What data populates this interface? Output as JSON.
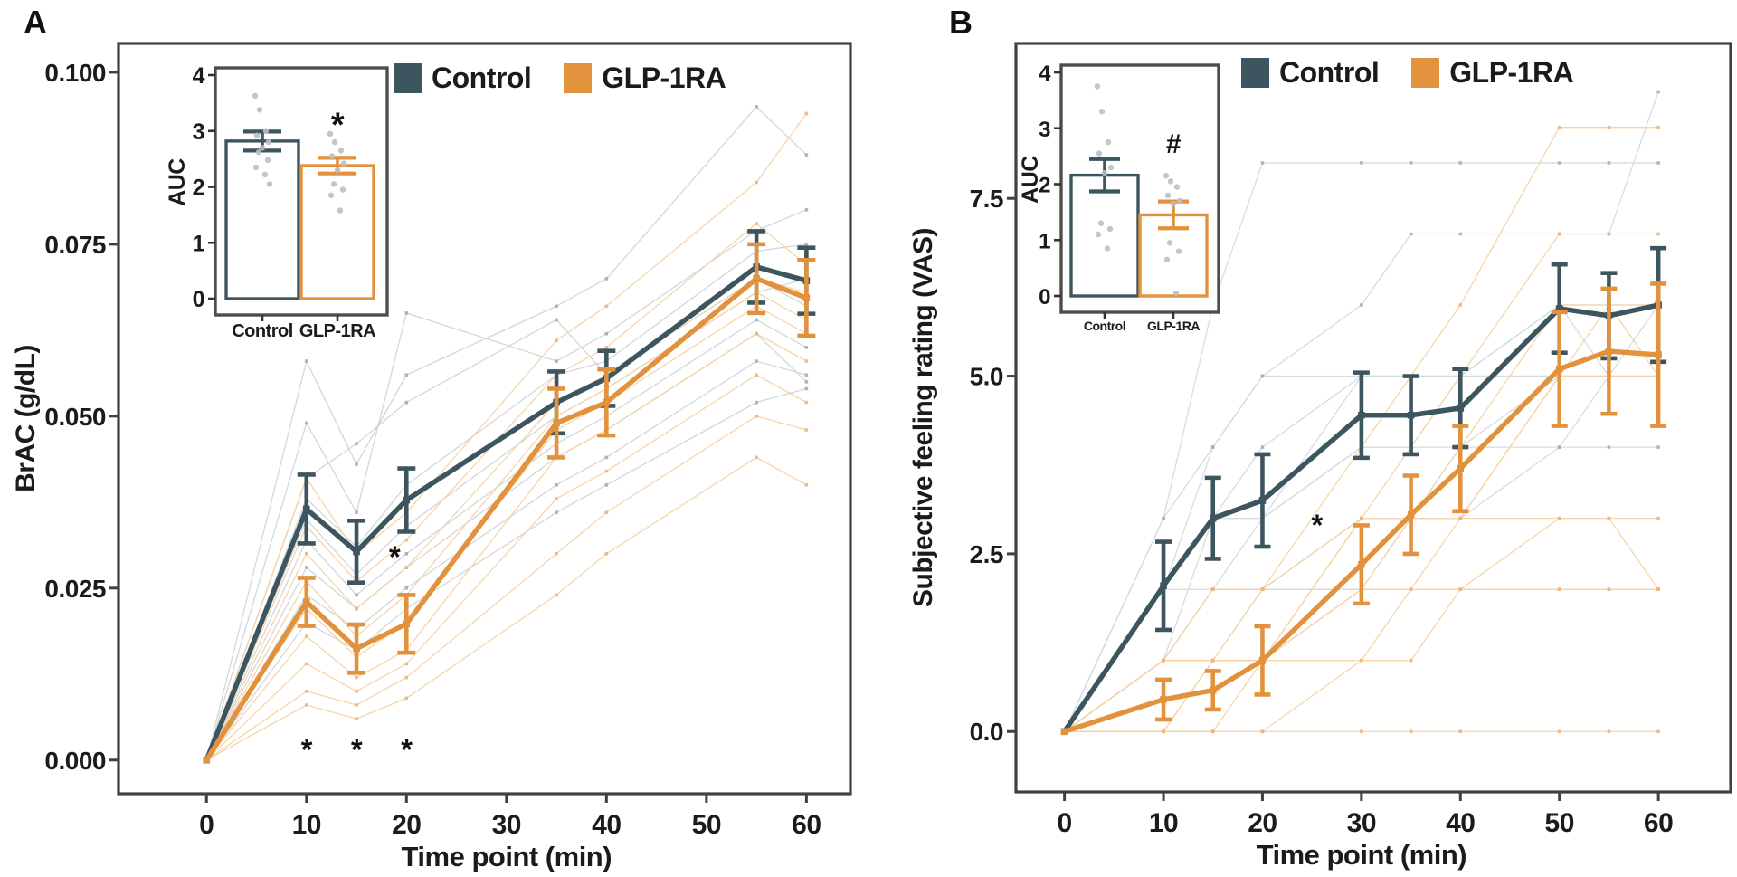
{
  "figure": {
    "panels": [
      {
        "label": "A"
      },
      {
        "label": "B"
      }
    ],
    "legend": {
      "entries": [
        {
          "label": "Control",
          "color": "#3d555e"
        },
        {
          "label": "GLP-1RA",
          "color": "#e2923d"
        }
      ]
    },
    "colors": {
      "control": "#3d555e",
      "glp1ra": "#e2923d",
      "control_individual": "#ccd3d6",
      "control_individual_marker": "#9fa9ae",
      "glp1ra_individual": "#f6d0a2",
      "glp1ra_individual_marker": "#edb277",
      "axis": "#3f4040",
      "jitter_point": "#b9c0c4",
      "annotation": "#111111"
    }
  },
  "chart_data": [
    {
      "id": "panel-a",
      "type": "line",
      "panel_label": "A",
      "xlabel": "Time point (min)",
      "ylabel": "BrAC (g/dL)",
      "xticks": [
        0,
        10,
        20,
        30,
        40,
        50,
        60
      ],
      "yticks": [
        0,
        0.025,
        0.05,
        0.075,
        0.1
      ],
      "ytick_labels": [
        "0.000",
        "0.025",
        "0.050",
        "0.075",
        "0.100"
      ],
      "xlim": [
        -8.8,
        64.4
      ],
      "ylim": [
        -0.0049,
        0.1042
      ],
      "x": [
        0,
        10,
        15,
        20,
        35,
        40,
        55,
        60
      ],
      "series": [
        {
          "name": "Control",
          "color": "#3d555e",
          "mean": [
            0,
            0.0365,
            0.0303,
            0.0378,
            0.052,
            0.0555,
            0.0717,
            0.0697
          ],
          "se": [
            0,
            0.005,
            0.0045,
            0.0046,
            0.0045,
            0.004,
            0.0052,
            0.0048
          ]
        },
        {
          "name": "GLP-1RA",
          "color": "#e2923d",
          "mean": [
            0,
            0.023,
            0.0162,
            0.0198,
            0.049,
            0.052,
            0.07,
            0.0672
          ],
          "se": [
            0,
            0.0035,
            0.0035,
            0.0042,
            0.005,
            0.0048,
            0.005,
            0.0055
          ]
        }
      ],
      "individuals": [
        {
          "group": "Control",
          "color": "#ccd3d6",
          "marker_color": "#9fa9ae",
          "lines": [
            [
              0,
              0.058,
              0.043,
              0.056,
              0.066,
              0.07,
              0.095,
              0.088
            ],
            [
              0,
              0.049,
              0.036,
              0.065,
              0.058,
              0.062,
              0.077,
              0.08
            ],
            [
              0,
              0.041,
              0.046,
              0.052,
              0.064,
              0.056,
              0.07,
              0.066
            ],
            [
              0,
              0.038,
              0.031,
              0.04,
              0.056,
              0.058,
              0.074,
              0.075
            ],
            [
              0,
              0.035,
              0.027,
              0.034,
              0.05,
              0.054,
              0.068,
              0.07
            ],
            [
              0,
              0.032,
              0.024,
              0.03,
              0.046,
              0.05,
              0.064,
              0.06
            ],
            [
              0,
              0.028,
              0.022,
              0.028,
              0.044,
              0.048,
              0.062,
              0.055
            ],
            [
              0,
              0.024,
              0.019,
              0.025,
              0.04,
              0.044,
              0.058,
              0.056
            ],
            [
              0,
              0.02,
              0.016,
              0.022,
              0.036,
              0.04,
              0.052,
              0.054
            ]
          ]
        },
        {
          "group": "GLP-1RA",
          "color": "#f6d0a2",
          "marker_color": "#edb277",
          "lines": [
            [
              0,
              0.041,
              0.03,
              0.036,
              0.061,
              0.066,
              0.084,
              0.094
            ],
            [
              0,
              0.034,
              0.026,
              0.032,
              0.056,
              0.06,
              0.078,
              0.072
            ],
            [
              0,
              0.03,
              0.022,
              0.028,
              0.052,
              0.056,
              0.07,
              0.068
            ],
            [
              0,
              0.026,
              0.018,
              0.024,
              0.05,
              0.054,
              0.068,
              0.064
            ],
            [
              0,
              0.022,
              0.015,
              0.02,
              0.048,
              0.052,
              0.066,
              0.062
            ],
            [
              0,
              0.018,
              0.012,
              0.016,
              0.044,
              0.048,
              0.062,
              0.058
            ],
            [
              0,
              0.014,
              0.01,
              0.014,
              0.038,
              0.042,
              0.056,
              0.052
            ],
            [
              0,
              0.01,
              0.008,
              0.012,
              0.03,
              0.036,
              0.05,
              0.048
            ],
            [
              0,
              0.008,
              0.006,
              0.009,
              0.024,
              0.03,
              0.044,
              0.04
            ]
          ]
        }
      ],
      "annotations": [
        {
          "text": "*",
          "x": 10,
          "y": 0.0015
        },
        {
          "text": "*",
          "x": 15,
          "y": 0.0015
        },
        {
          "text": "*",
          "x": 20,
          "y": 0.0015
        },
        {
          "text": "*",
          "x": 18.8,
          "y": 0.0295
        }
      ]
    },
    {
      "id": "inset-a",
      "type": "bar",
      "ylabel": "AUC",
      "yticks": [
        0,
        1,
        2,
        3,
        4
      ],
      "ylim": [
        0,
        4
      ],
      "categories": [
        "Control",
        "GLP-1RA"
      ],
      "values": [
        2.82,
        2.38
      ],
      "se": [
        0.17,
        0.14
      ],
      "bar_colors": [
        "#3d555e",
        "#e2923d"
      ],
      "points": [
        [
          3.63,
          3.38,
          3.0,
          2.92,
          2.8,
          2.7,
          2.62,
          2.48,
          2.35,
          2.22,
          2.05
        ],
        [
          2.95,
          2.8,
          2.65,
          2.55,
          2.42,
          2.3,
          2.05,
          1.95,
          1.85,
          1.58
        ]
      ],
      "annotations": [
        {
          "text": "*",
          "cat": 1,
          "y": 3.1
        }
      ]
    },
    {
      "id": "panel-b",
      "type": "line",
      "panel_label": "B",
      "xlabel": "Time point (min)",
      "ylabel": "Subjective feeling rating (VAS)",
      "xticks": [
        0,
        10,
        20,
        30,
        40,
        50,
        60
      ],
      "yticks": [
        0,
        2.5,
        5,
        7.5
      ],
      "ytick_labels": [
        "0.0",
        "2.5",
        "5.0",
        "7.5"
      ],
      "xlim": [
        -4.9,
        67.3
      ],
      "ylim": [
        -0.85,
        9.68
      ],
      "x": [
        0,
        10,
        15,
        20,
        30,
        35,
        40,
        50,
        55,
        60
      ],
      "series": [
        {
          "name": "Control",
          "color": "#3d555e",
          "mean": [
            0,
            2.05,
            3.0,
            3.25,
            4.45,
            4.45,
            4.55,
            5.95,
            5.85,
            6.0
          ],
          "se": [
            0,
            0.62,
            0.57,
            0.65,
            0.6,
            0.55,
            0.55,
            0.62,
            0.6,
            0.8
          ]
        },
        {
          "name": "GLP-1RA",
          "color": "#e2923d",
          "mean": [
            0,
            0.45,
            0.58,
            1.0,
            2.35,
            3.05,
            3.7,
            5.1,
            5.35,
            5.3
          ],
          "se": [
            0,
            0.28,
            0.27,
            0.48,
            0.55,
            0.55,
            0.6,
            0.8,
            0.88,
            1.0
          ]
        }
      ],
      "individuals": [
        {
          "group": "Control",
          "color": "#d3d8db",
          "marker_color": "#a3adb2",
          "lines": [
            [
              0,
              3,
              6,
              8,
              8,
              8,
              8,
              8,
              8,
              8
            ],
            [
              0,
              2,
              4,
              5,
              6,
              7,
              7,
              7,
              7,
              9
            ],
            [
              0,
              3,
              4,
              5,
              5,
              5,
              5,
              6,
              6,
              6
            ],
            [
              0,
              1,
              3,
              4,
              5,
              5,
              5,
              6,
              5,
              6
            ],
            [
              0,
              2,
              3,
              3,
              4,
              4,
              5,
              5,
              5,
              5
            ],
            [
              0,
              1,
              2,
              3,
              4,
              4,
              4,
              5,
              5,
              5
            ],
            [
              0,
              2,
              2,
              2,
              3,
              3,
              4,
              4,
              4,
              4
            ],
            [
              0,
              1,
              1,
              2,
              2,
              3,
              3,
              4,
              5,
              5
            ],
            [
              0,
              1,
              2,
              2,
              2,
              2,
              2,
              2,
              2,
              2
            ],
            [
              0,
              2,
              3,
              3,
              5,
              5,
              5,
              5,
              5,
              5
            ]
          ]
        },
        {
          "group": "GLP-1RA",
          "color": "#f6d0a2",
          "marker_color": "#edb277",
          "lines": [
            [
              0,
              1,
              1,
              2,
              4,
              5,
              6,
              8.5,
              8.5,
              8.5
            ],
            [
              0,
              1,
              2,
              2,
              3,
              4,
              5,
              7,
              7,
              7
            ],
            [
              0,
              0,
              1,
              1,
              3,
              3,
              4,
              6,
              6,
              6
            ],
            [
              0,
              1,
              1,
              1,
              2,
              3,
              3,
              5,
              6,
              5
            ],
            [
              0,
              0,
              1,
              1,
              2,
              2,
              3,
              5,
              5,
              5
            ],
            [
              0,
              0,
              0,
              1,
              3,
              3,
              3,
              3,
              3,
              3
            ],
            [
              0,
              1,
              1,
              1,
              1,
              2,
              2,
              3,
              3,
              2
            ],
            [
              0,
              0,
              0,
              0,
              1,
              1,
              2,
              2,
              2,
              2
            ],
            [
              0,
              0,
              0,
              0,
              0,
              0,
              0,
              0,
              0,
              0
            ]
          ]
        }
      ],
      "annotations": [
        {
          "text": "*",
          "x": 25.5,
          "y": 2.9
        }
      ]
    },
    {
      "id": "inset-b",
      "type": "bar",
      "ylabel": "AUC",
      "yticks": [
        0,
        1,
        2,
        3,
        4
      ],
      "ylim": [
        0,
        4
      ],
      "categories": [
        "Control",
        "GLP-1RA"
      ],
      "values": [
        2.16,
        1.45
      ],
      "se": [
        0.29,
        0.24
      ],
      "bar_colors": [
        "#3d555e",
        "#e2923d"
      ],
      "points": [
        [
          3.75,
          3.3,
          2.75,
          2.55,
          2.3,
          2.2,
          1.3,
          1.2,
          1.1,
          0.85
        ],
        [
          2.15,
          2.05,
          1.95,
          1.8,
          1.7,
          1.65,
          0.95,
          0.8,
          0.65,
          0.05
        ]
      ],
      "annotations": [
        {
          "text": "#",
          "cat": 1,
          "y": 2.75
        }
      ]
    }
  ]
}
